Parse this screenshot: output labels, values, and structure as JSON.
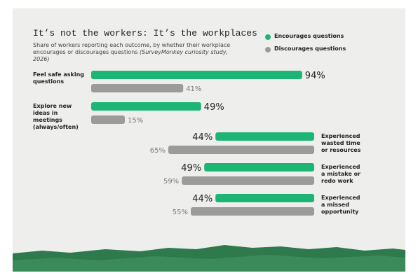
{
  "chart_data": {
    "type": "bar",
    "title": "It’s not the workers: It’s the workplaces",
    "subtitle": "Share of workers reporting each outcome, by whether their workplace encourages or discourages questions",
    "source": "(SurveyMonkey curiosity study, 2026)",
    "categories": [
      "Feel safe asking questions",
      "Explore new ideas in meetings (always/often)",
      "Experienced wasted time or resources",
      "Experienced a mistake or redo work",
      "Experienced a missed opportunity"
    ],
    "series": [
      {
        "name": "Encourages questions",
        "color": "#1db575",
        "values": [
          94,
          49,
          44,
          49,
          44
        ],
        "value_labels": [
          "94%",
          "49%",
          "44%",
          "49%",
          "44%"
        ]
      },
      {
        "name": "Discourages questions",
        "color": "#9b9b9b",
        "values": [
          41,
          15,
          65,
          59,
          55
        ],
        "value_labels": [
          "41%",
          "15%",
          "65%",
          "59%",
          "55%"
        ]
      }
    ]
  }
}
